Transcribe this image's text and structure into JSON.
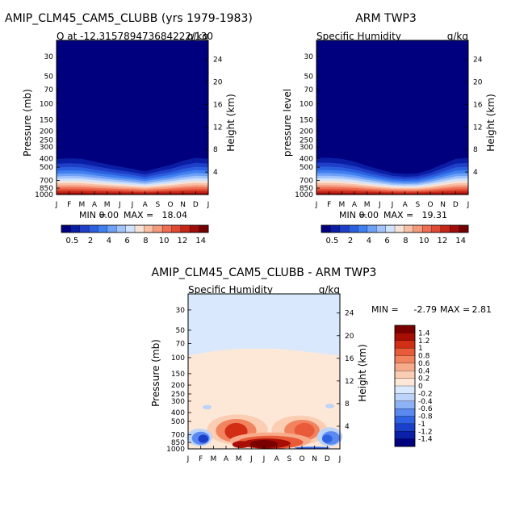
{
  "chart_data": [
    {
      "type": "heatmap",
      "title": "AMIP_CLM45_CAM5_CLUBB (yrs 1979-1983)",
      "subtitle_left": "Q at -12.315789473684222/130",
      "subtitle_right": "g/kg",
      "ylabel": "Pressure (mb)",
      "ylabel_right": "Height (km)",
      "months": [
        "J",
        "F",
        "M",
        "A",
        "M",
        "J",
        "J",
        "A",
        "S",
        "O",
        "N",
        "D",
        "J"
      ],
      "yticks": [
        "30",
        "50",
        "70",
        "100",
        "150",
        "200",
        "250",
        "300",
        "400",
        "500",
        "700",
        "850",
        "1000"
      ],
      "yticks_right": [
        "24",
        "20",
        "16",
        "12",
        "8",
        "4"
      ],
      "min_label": "MIN =",
      "min_value": "0.00",
      "max_label": "MAX =",
      "max_value": "18.04",
      "colorbar_labels": [
        "0.5",
        "2",
        "4",
        "6",
        "8",
        "10",
        "12",
        "14"
      ],
      "top_of_moisture_mb": [
        310,
        305,
        310,
        340,
        370,
        400,
        430,
        470,
        420,
        380,
        330,
        300,
        310
      ]
    },
    {
      "type": "heatmap",
      "title": "ARM TWP3",
      "subtitle_left": "Specific Humidity",
      "subtitle_right": "g/kg",
      "ylabel": "pressure level",
      "ylabel_right": "Height (km)",
      "months": [
        "J",
        "F",
        "M",
        "A",
        "M",
        "J",
        "J",
        "A",
        "S",
        "O",
        "N",
        "D",
        "J"
      ],
      "yticks": [
        "30",
        "50",
        "70",
        "100",
        "150",
        "200",
        "250",
        "300",
        "400",
        "500",
        "700",
        "850",
        "1000"
      ],
      "yticks_right": [
        "24",
        "20",
        "16",
        "12",
        "8",
        "4"
      ],
      "min_label": "MIN =",
      "min_value": "0.00",
      "max_label": "MAX =",
      "max_value": "19.31",
      "colorbar_labels": [
        "0.5",
        "2",
        "4",
        "6",
        "8",
        "10",
        "12",
        "14"
      ],
      "top_of_moisture_mb": [
        300,
        300,
        310,
        340,
        390,
        440,
        490,
        510,
        500,
        440,
        370,
        310,
        300
      ]
    },
    {
      "type": "heatmap",
      "title": "AMIP_CLM45_CAM5_CLUBB - ARM TWP3",
      "subtitle_left": "Specific Humidity",
      "subtitle_right": "g/kg",
      "ylabel": "Pressure (mb)",
      "ylabel_right": "Height (km)",
      "months": [
        "J",
        "F",
        "M",
        "A",
        "M",
        "J",
        "J",
        "A",
        "S",
        "O",
        "N",
        "D",
        "J"
      ],
      "yticks": [
        "30",
        "50",
        "70",
        "100",
        "150",
        "200",
        "250",
        "300",
        "400",
        "500",
        "700",
        "850",
        "1000"
      ],
      "yticks_right": [
        "24",
        "20",
        "16",
        "12",
        "8",
        "4"
      ],
      "min_label": "MIN =",
      "min_value": "-2.79",
      "max_label": "MAX =",
      "max_value": "2.81",
      "colorbar_labels": [
        "1.4",
        "1.2",
        "1",
        "0.8",
        "0.6",
        "0.4",
        "0.2",
        "0",
        "-0.2",
        "-0.4",
        "-0.6",
        "-0.8",
        "-1",
        "-1.2",
        "-1.4"
      ]
    }
  ],
  "colors": {
    "seq": [
      "#00007f",
      "#0a1ea5",
      "#1f3fc8",
      "#2c5fe0",
      "#3f7ff0",
      "#6ea0f5",
      "#a2c4fa",
      "#d0e2fc",
      "#f7e2d8",
      "#f8c0a6",
      "#f59a7c",
      "#ef6e54",
      "#e04a32",
      "#c62618",
      "#a00c0a",
      "#750000"
    ],
    "div": [
      "#00007f",
      "#0a20a8",
      "#1a3fcb",
      "#2e62e2",
      "#5a8af0",
      "#8eb2f6",
      "#bcd3fa",
      "#d9e8fd",
      "#fde8d8",
      "#fbcdb2",
      "#f8ab8a",
      "#f2835f",
      "#e85a38",
      "#d22d15",
      "#a80e05",
      "#7a0000"
    ]
  }
}
